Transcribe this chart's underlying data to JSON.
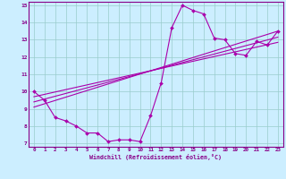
{
  "xlabel": "Windchill (Refroidissement éolien,°C)",
  "bg_color": "#cceeff",
  "grid_color": "#99cccc",
  "line_color": "#aa00aa",
  "spine_color": "#880088",
  "tick_color": "#880088",
  "xlim": [
    -0.5,
    23.5
  ],
  "ylim": [
    6.8,
    15.2
  ],
  "xticks": [
    0,
    1,
    2,
    3,
    4,
    5,
    6,
    7,
    8,
    9,
    10,
    11,
    12,
    13,
    14,
    15,
    16,
    17,
    18,
    19,
    20,
    21,
    22,
    23
  ],
  "yticks": [
    7,
    8,
    9,
    10,
    11,
    12,
    13,
    14,
    15
  ],
  "curve1_x": [
    0,
    1,
    2,
    3,
    4,
    5,
    6,
    7,
    8,
    9,
    10,
    11,
    12,
    13,
    14,
    15,
    16,
    17,
    18,
    19,
    20,
    21,
    22,
    23
  ],
  "curve1_y": [
    10.0,
    9.5,
    8.5,
    8.3,
    8.0,
    7.6,
    7.6,
    7.1,
    7.2,
    7.2,
    7.1,
    8.6,
    10.5,
    13.7,
    15.0,
    14.7,
    14.5,
    13.1,
    13.0,
    12.2,
    12.1,
    12.9,
    12.7,
    13.5
  ],
  "line1_x": [
    0,
    23
  ],
  "line1_y": [
    9.1,
    13.5
  ],
  "line2_x": [
    0,
    23
  ],
  "line2_y": [
    9.4,
    13.15
  ],
  "line3_x": [
    0,
    23
  ],
  "line3_y": [
    9.7,
    12.85
  ]
}
